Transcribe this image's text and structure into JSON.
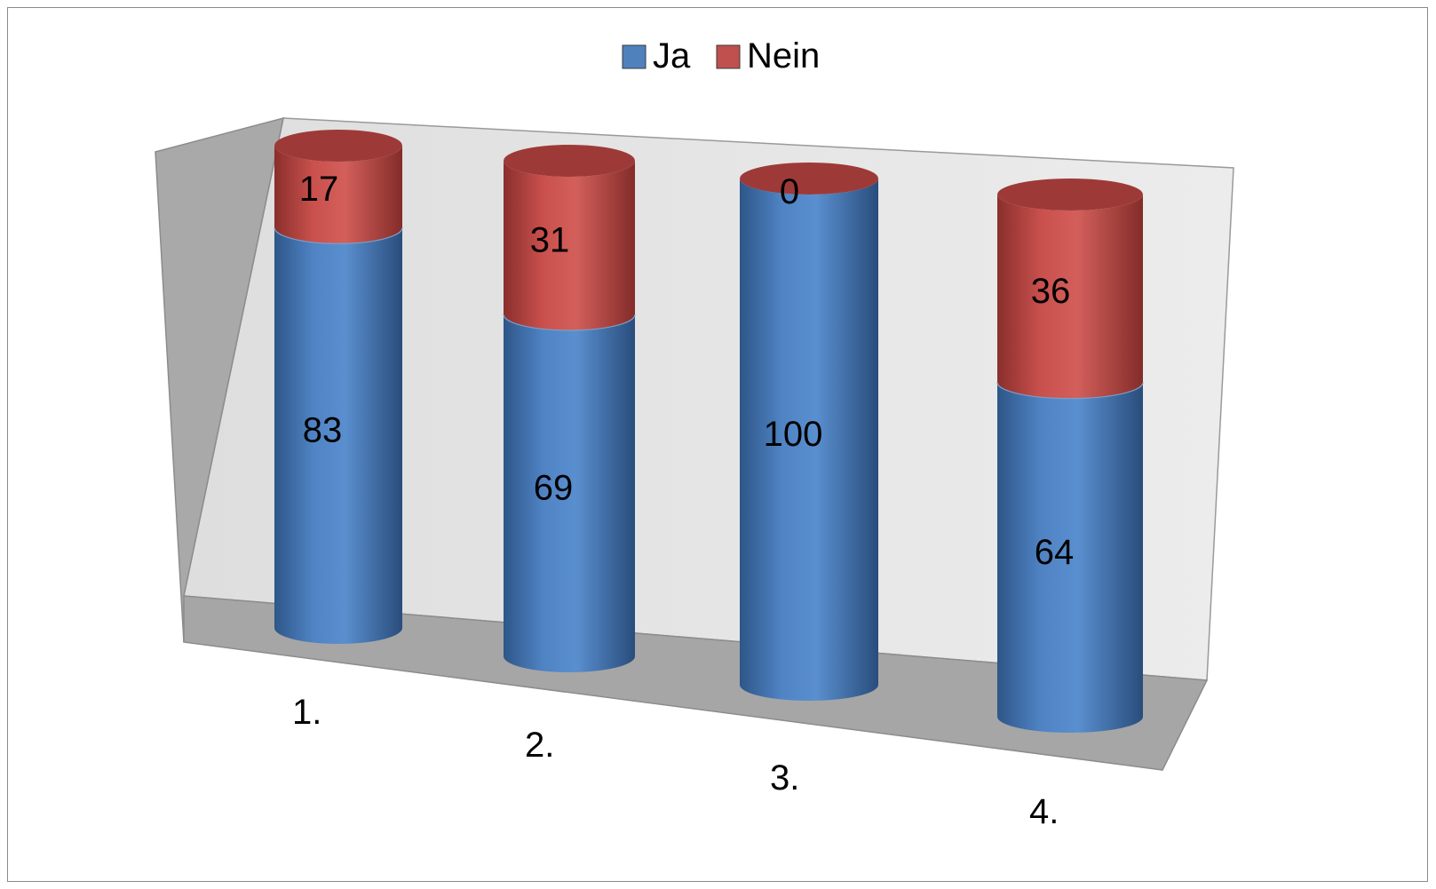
{
  "chart_data": {
    "type": "bar",
    "stacked": true,
    "three_d": true,
    "shape": "cylinder",
    "categories": [
      "1.",
      "2.",
      "3.",
      "4."
    ],
    "series": [
      {
        "name": "Ja",
        "color": "#4f81bd",
        "values": [
          83,
          69,
          100,
          64
        ]
      },
      {
        "name": "Nein",
        "color": "#c0504d",
        "values": [
          17,
          31,
          0,
          36
        ]
      }
    ],
    "ylim": [
      0,
      100
    ],
    "data_labels": true,
    "gridlines": false,
    "legend_position": "top-center"
  }
}
